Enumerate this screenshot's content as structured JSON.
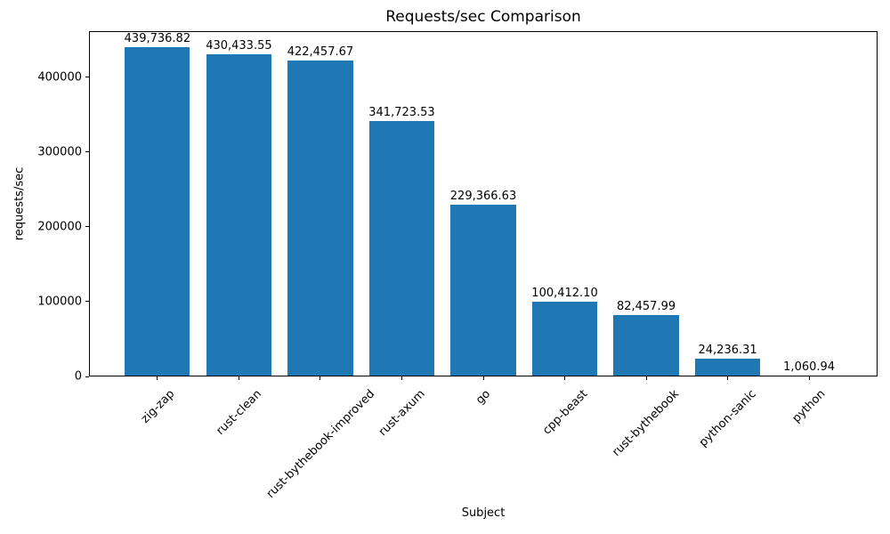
{
  "chart_data": {
    "type": "bar",
    "title": "Requests/sec Comparison",
    "xlabel": "Subject",
    "ylabel": "requests/sec",
    "categories": [
      "zig-zap",
      "rust-clean",
      "rust-bythebook-improved",
      "rust-axum",
      "go",
      "cpp-beast",
      "rust-bythebook",
      "python-sanic",
      "python"
    ],
    "values": [
      439736.82,
      430433.55,
      422457.67,
      341723.53,
      229366.63,
      100412.1,
      82457.99,
      24236.31,
      1060.94
    ],
    "value_labels": [
      "439,736.82",
      "430,433.55",
      "422,457.67",
      "341,723.53",
      "229,366.63",
      "100,412.10",
      "82,457.99",
      "24,236.31",
      "1,060.94"
    ],
    "y_ticks": [
      0,
      100000,
      200000,
      300000,
      400000
    ],
    "y_tick_labels": [
      "0",
      "100000",
      "200000",
      "300000",
      "400000"
    ],
    "ylim": [
      0,
      461723.66
    ],
    "bar_color": "#1f77b4",
    "background_color": "#ffffff",
    "text_color": "#000000",
    "grid": false,
    "legend_position": "none",
    "x_tick_rotation_deg": 45
  }
}
